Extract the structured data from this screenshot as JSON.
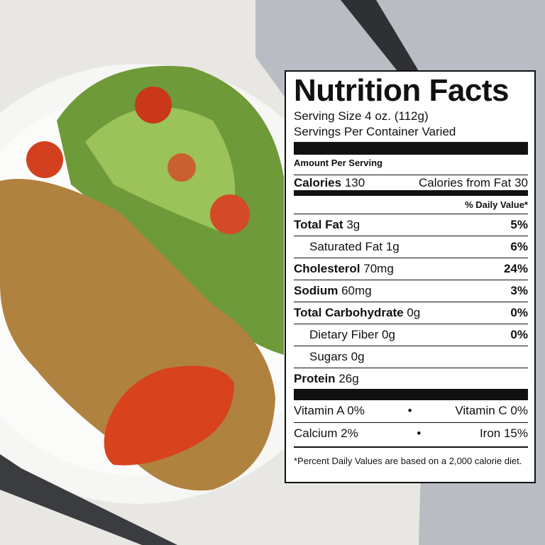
{
  "label": {
    "title": "Nutrition Facts",
    "serving_size": "Serving Size 4 oz. (112g)",
    "servings_per_container": "Servings Per Container Varied",
    "amount_per_serving": "Amount Per Serving",
    "calories": {
      "label": "Calories",
      "value": "130"
    },
    "calories_from_fat": "Calories from Fat 30",
    "daily_value_header": "% Daily Value*",
    "nutrients": [
      {
        "name": "Total Fat",
        "amount": "3g",
        "dv": "5%",
        "bold": true,
        "indent": false
      },
      {
        "name": "Saturated Fat",
        "amount": "1g",
        "dv": "6%",
        "bold": false,
        "indent": true
      },
      {
        "name": "Cholesterol",
        "amount": "70mg",
        "dv": "24%",
        "bold": true,
        "indent": false
      },
      {
        "name": "Sodium",
        "amount": "60mg",
        "dv": "3%",
        "bold": true,
        "indent": false
      },
      {
        "name": "Total Carbohydrate",
        "amount": "0g",
        "dv": "0%",
        "bold": true,
        "indent": false
      },
      {
        "name": "Dietary Fiber",
        "amount": "0g",
        "dv": "0%",
        "bold": false,
        "indent": true
      },
      {
        "name": "Sugars",
        "amount": "0g",
        "bold": false,
        "indent": true
      },
      {
        "name": "Protein",
        "amount": "26g",
        "bold": true,
        "indent": false
      }
    ],
    "separator": "•",
    "vitamins": [
      [
        "Vitamin A 0%",
        "Vitamin C 0%"
      ],
      [
        "Calcium 2%",
        "Iron 15%"
      ]
    ],
    "footnote": "*Percent Daily Values are based on a 2,000 calorie diet."
  }
}
